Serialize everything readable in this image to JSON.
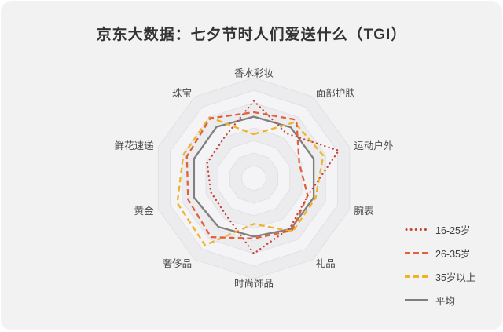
{
  "title": "京东大数据：七夕节时人们爱送什么（TGI）",
  "colors": {
    "age_16_25": "#c2453a",
    "age_26_35": "#e0613c",
    "age_35_plus": "#eeb326",
    "average": "#7f7f7f",
    "card_bg": "#f2f2f3",
    "grid_line": "#e1e1e3",
    "band_light": "#f4f4f6",
    "band_dark": "#ececef",
    "axis_label": "#4a4a4a",
    "title_text": "#333333"
  },
  "chart_data": {
    "type": "radar",
    "title": "京东大数据：七夕节时人们爱送什么（TGI）",
    "categories": [
      "香水彩妆",
      "面部护肤",
      "运动户外",
      "腕表",
      "礼品",
      "时尚饰品",
      "奢侈品",
      "黄金",
      "鲜花速递",
      "珠宝"
    ],
    "axis_range": {
      "min": 0,
      "max": 160,
      "rings": 8,
      "ring_step": 20
    },
    "grid": "concentric-decagons, no radial spokes",
    "legend_position": "right",
    "series": [
      {
        "name": "16-25岁",
        "style": "dotted",
        "color": "#c2453a",
        "values": [
          123,
          88,
          142,
          90,
          98,
          120,
          74,
          72,
          78,
          80
        ]
      },
      {
        "name": "26-35岁",
        "style": "dashed",
        "color": "#e0613c",
        "values": [
          105,
          115,
          76,
          90,
          103,
          96,
          116,
          110,
          112,
          118
        ]
      },
      {
        "name": "35岁以上",
        "style": "dashed",
        "color": "#eeb326",
        "values": [
          70,
          110,
          116,
          103,
          105,
          73,
          132,
          128,
          118,
          120
        ]
      },
      {
        "name": "平均",
        "style": "solid",
        "color": "#7f7f7f",
        "values": [
          98,
          100,
          100,
          100,
          100,
          93,
          96,
          100,
          100,
          101
        ]
      }
    ]
  }
}
